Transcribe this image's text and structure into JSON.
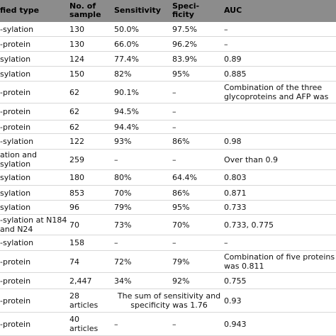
{
  "header": {
    "type": "fied type",
    "samples": "No. of sample",
    "sensitivity": "Sensitivity",
    "specificity": "Speci-ficity",
    "auc": "AUC"
  },
  "rows": [
    {
      "type": "-sylation",
      "samples": "130",
      "sensitivity": "50.0%",
      "specificity": "97.5%",
      "auc": "–"
    },
    {
      "type": "-protein",
      "samples": "130",
      "sensitivity": "66.0%",
      "specificity": "96.2%",
      "auc": "–"
    },
    {
      "type": "sylation",
      "samples": "124",
      "sensitivity": "77.4%",
      "specificity": "83.9%",
      "auc": "0.89"
    },
    {
      "type": "sylation",
      "samples": "150",
      "sensitivity": "82%",
      "specificity": "95%",
      "auc": "0.885"
    },
    {
      "type": "-protein",
      "samples": "62",
      "sensitivity": "90.1%",
      "specificity": "–",
      "auc": "Combination of the three glycoproteins and AFP was"
    },
    {
      "type": "-protein",
      "samples": "62",
      "sensitivity": "94.5%",
      "specificity": "–",
      "auc": ""
    },
    {
      "type": "-protein",
      "samples": "62",
      "sensitivity": "94.4%",
      "specificity": "–",
      "auc": ""
    },
    {
      "type": "-sylation",
      "samples": "122",
      "sensitivity": "93%",
      "specificity": "86%",
      "auc": "0.98"
    },
    {
      "type": "ation and sylation",
      "samples": "259",
      "sensitivity": "–",
      "specificity": "–",
      "auc": "Over than 0.9"
    },
    {
      "type": "sylation",
      "samples": "180",
      "sensitivity": "80%",
      "specificity": "64.4%",
      "auc": "0.803"
    },
    {
      "type": "sylation",
      "samples": "853",
      "sensitivity": "70%",
      "specificity": "86%",
      "auc": "0.871"
    },
    {
      "type": "sylation",
      "samples": "96",
      "sensitivity": "79%",
      "specificity": "95%",
      "auc": "0.733"
    },
    {
      "type": "-sylation at N184 and N24",
      "samples": "70",
      "sensitivity": "73%",
      "specificity": "70%",
      "auc": "0.733, 0.775"
    },
    {
      "type": "-sylation",
      "samples": "158",
      "sensitivity": "–",
      "specificity": "–",
      "auc": "–"
    },
    {
      "type": "-protein",
      "samples": "74",
      "sensitivity": "72%",
      "specificity": "79%",
      "auc": "Combination of five proteins was 0.811"
    },
    {
      "type": "-protein",
      "samples": "2,447",
      "sensitivity": "34%",
      "specificity": "92%",
      "auc": "0.755"
    },
    {
      "type": "-protein",
      "samples": "28 articles",
      "merged": "The sum of sensitivity and specificity was 1.76",
      "auc": "0.93"
    },
    {
      "type": "-protein",
      "samples": "40 articles",
      "sensitivity": "–",
      "specificity": "–",
      "auc": "0.943"
    }
  ]
}
